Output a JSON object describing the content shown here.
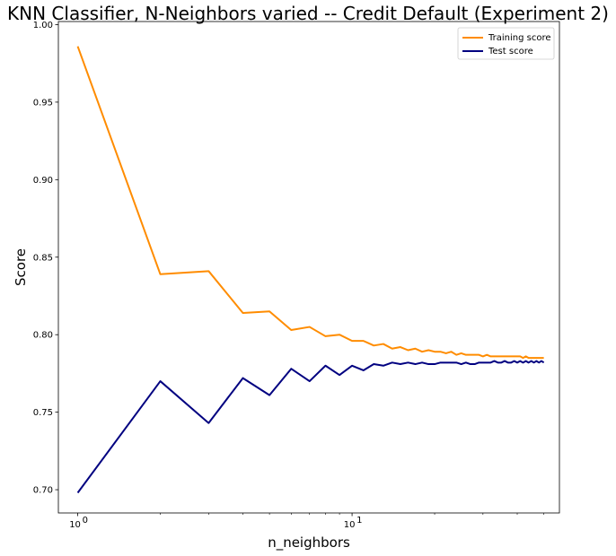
{
  "chart_data": {
    "type": "line",
    "title": "KNN Classifier, N-Neighbors varied -- Credit Default (Experiment 2)",
    "xlabel": "n_neighbors",
    "ylabel": "Score",
    "xscale": "log",
    "xlim": [
      0.85,
      57
    ],
    "ylim": [
      0.685,
      1.002
    ],
    "x_ticks": [
      {
        "value": 1,
        "label": "10",
        "exp": "0"
      },
      {
        "value": 10,
        "label": "10",
        "exp": "1"
      }
    ],
    "y_ticks": [
      {
        "value": 0.7,
        "label": "0.70"
      },
      {
        "value": 0.75,
        "label": "0.75"
      },
      {
        "value": 0.8,
        "label": "0.80"
      },
      {
        "value": 0.85,
        "label": "0.85"
      },
      {
        "value": 0.9,
        "label": "0.90"
      },
      {
        "value": 0.95,
        "label": "0.95"
      },
      {
        "value": 1.0,
        "label": "1.00"
      }
    ],
    "grid": false,
    "legend_position": "top-right",
    "x": [
      1,
      2,
      3,
      4,
      5,
      6,
      7,
      8,
      9,
      10,
      11,
      12,
      13,
      14,
      15,
      16,
      17,
      18,
      19,
      20,
      21,
      22,
      23,
      24,
      25,
      26,
      27,
      28,
      29,
      30,
      31,
      32,
      33,
      34,
      35,
      36,
      37,
      38,
      39,
      40,
      41,
      42,
      43,
      44,
      45,
      46,
      47,
      48,
      49,
      50
    ],
    "series": [
      {
        "name": "Training score",
        "color": "#ff8c00",
        "values": [
          0.986,
          0.839,
          0.841,
          0.814,
          0.815,
          0.803,
          0.805,
          0.799,
          0.8,
          0.796,
          0.796,
          0.793,
          0.794,
          0.791,
          0.792,
          0.79,
          0.791,
          0.789,
          0.79,
          0.789,
          0.789,
          0.788,
          0.789,
          0.787,
          0.788,
          0.787,
          0.787,
          0.787,
          0.787,
          0.786,
          0.787,
          0.786,
          0.786,
          0.786,
          0.786,
          0.786,
          0.786,
          0.786,
          0.786,
          0.786,
          0.786,
          0.785,
          0.786,
          0.785,
          0.785,
          0.785,
          0.785,
          0.785,
          0.785,
          0.785
        ]
      },
      {
        "name": "Test score",
        "color": "#000080",
        "values": [
          0.698,
          0.77,
          0.743,
          0.772,
          0.761,
          0.778,
          0.77,
          0.78,
          0.774,
          0.78,
          0.777,
          0.781,
          0.78,
          0.782,
          0.781,
          0.782,
          0.781,
          0.782,
          0.781,
          0.781,
          0.782,
          0.782,
          0.782,
          0.782,
          0.781,
          0.782,
          0.781,
          0.781,
          0.782,
          0.782,
          0.782,
          0.782,
          0.783,
          0.782,
          0.782,
          0.783,
          0.782,
          0.782,
          0.783,
          0.782,
          0.783,
          0.782,
          0.783,
          0.782,
          0.783,
          0.782,
          0.783,
          0.782,
          0.783,
          0.782
        ]
      }
    ]
  }
}
